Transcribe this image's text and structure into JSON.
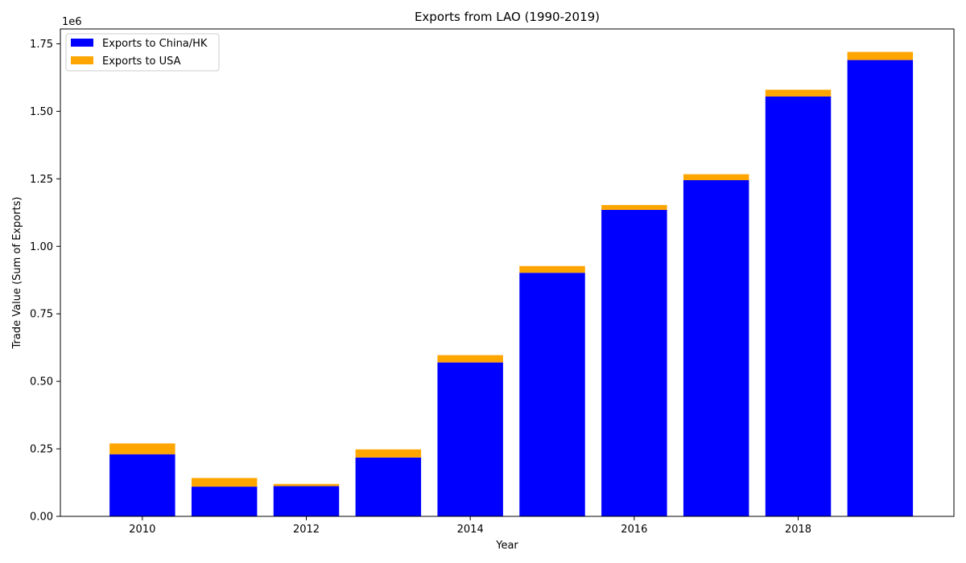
{
  "chart_data": {
    "type": "bar",
    "stacked": true,
    "title": "Exports from LAO (1990-2019)",
    "xlabel": "Year",
    "ylabel": "Trade Value (Sum of Exports)",
    "y_offset_label": "1e6",
    "x": [
      2010,
      2011,
      2012,
      2013,
      2014,
      2015,
      2016,
      2017,
      2018,
      2019
    ],
    "x_ticks": [
      2010,
      2012,
      2014,
      2016,
      2018
    ],
    "x_tick_labels": [
      "2010",
      "2012",
      "2014",
      "2016",
      "2018"
    ],
    "xlim": [
      2009.0,
      2019.9
    ],
    "y_ticks": [
      0,
      250000,
      500000,
      750000,
      1000000,
      1250000,
      1500000,
      1750000
    ],
    "y_tick_labels": [
      "0.00",
      "0.25",
      "0.50",
      "0.75",
      "1.00",
      "1.25",
      "1.50",
      "1.75"
    ],
    "ylim": [
      0,
      1805000
    ],
    "bar_width": 0.8,
    "grid": false,
    "legend_position": "top-left",
    "series": [
      {
        "name": "Exports to China/HK",
        "color": "#0000ff",
        "values": [
          230000,
          110000,
          112000,
          218000,
          570000,
          902000,
          1135000,
          1245000,
          1555000,
          1690000
        ]
      },
      {
        "name": "Exports to USA",
        "color": "#ffa500",
        "values": [
          40000,
          32000,
          8000,
          30000,
          27000,
          25000,
          18000,
          22000,
          25000,
          30000
        ]
      }
    ]
  }
}
